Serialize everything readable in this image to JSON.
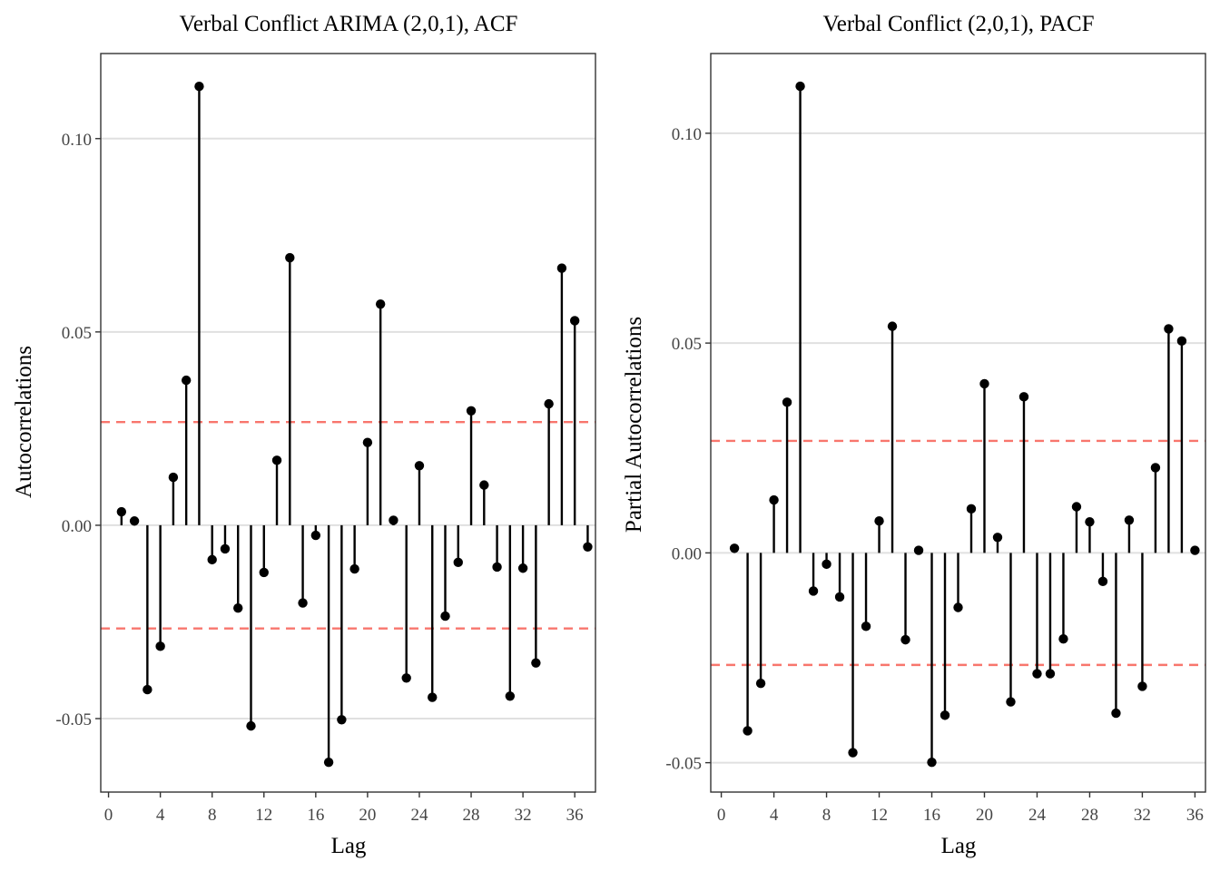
{
  "chart_data": [
    {
      "type": "stem",
      "title": "Verbal Conflict ARIMA (2,0,1), ACF",
      "xlabel": "Lag",
      "ylabel": "Autocorrelations",
      "xlim": [
        0,
        37
      ],
      "ylim": [
        -0.069,
        0.122
      ],
      "xticks": [
        0,
        4,
        8,
        12,
        16,
        20,
        24,
        28,
        32,
        36
      ],
      "xtick_labels": [
        "0",
        "4",
        "8",
        "12",
        "16",
        "20",
        "24",
        "28",
        "32",
        "36"
      ],
      "yticks": [
        -0.05,
        0.0,
        0.05,
        0.1
      ],
      "ytick_labels": [
        "-0.05",
        "0.00",
        "0.05",
        "0.10"
      ],
      "conf_limits": [
        0.0267,
        -0.0267
      ],
      "grid": true,
      "lags": [
        1,
        2,
        3,
        4,
        5,
        6,
        7,
        8,
        9,
        10,
        11,
        12,
        13,
        14,
        15,
        16,
        17,
        18,
        19,
        20,
        21,
        22,
        23,
        24,
        25,
        26,
        27,
        28,
        29,
        30,
        31,
        32,
        33,
        34,
        35,
        36,
        37
      ],
      "values": [
        0.0035,
        0.0011,
        -0.0425,
        -0.0313,
        0.0124,
        0.0375,
        0.1135,
        -0.0089,
        -0.0061,
        -0.0214,
        -0.0519,
        -0.0122,
        0.0168,
        0.0692,
        -0.0201,
        -0.0026,
        -0.0613,
        -0.0503,
        -0.0113,
        0.0214,
        0.0572,
        0.0013,
        -0.0395,
        0.0154,
        -0.0445,
        -0.0235,
        -0.0096,
        0.0296,
        0.0104,
        -0.0108,
        -0.0442,
        -0.0111,
        -0.0356,
        0.0314,
        0.0665,
        0.0529,
        -0.0056
      ]
    },
    {
      "type": "stem",
      "title": "Verbal Conflict (2,0,1), PACF",
      "xlabel": "Lag",
      "ylabel": "Partial Autocorrelations",
      "xlim": [
        0,
        36
      ],
      "ylim": [
        -0.057,
        0.119
      ],
      "xticks": [
        0,
        4,
        8,
        12,
        16,
        20,
        24,
        28,
        32,
        36
      ],
      "xtick_labels": [
        "0",
        "4",
        "8",
        "12",
        "16",
        "20",
        "24",
        "28",
        "32",
        "36"
      ],
      "yticks": [
        -0.05,
        0.0,
        0.05,
        0.1
      ],
      "ytick_labels": [
        "-0.05",
        "0.00",
        "0.05",
        "0.10"
      ],
      "conf_limits": [
        0.0267,
        -0.0267
      ],
      "grid": true,
      "lags": [
        1,
        2,
        3,
        4,
        5,
        6,
        7,
        8,
        9,
        10,
        11,
        12,
        13,
        14,
        15,
        16,
        17,
        18,
        19,
        20,
        21,
        22,
        23,
        24,
        25,
        26,
        27,
        28,
        29,
        30,
        31,
        32,
        33,
        34,
        35,
        36
      ],
      "values": [
        0.0011,
        -0.0424,
        -0.0311,
        0.0126,
        0.0359,
        0.1112,
        -0.0091,
        -0.0027,
        -0.0105,
        -0.0476,
        -0.0175,
        0.0076,
        0.054,
        -0.0207,
        0.0006,
        -0.0499,
        -0.0387,
        -0.013,
        0.0105,
        0.0403,
        0.0037,
        -0.0355,
        0.0372,
        -0.0288,
        -0.0288,
        -0.0205,
        0.011,
        0.0074,
        -0.0068,
        -0.0382,
        0.0078,
        -0.0318,
        0.0203,
        0.0534,
        0.0505,
        0.0006
      ]
    }
  ]
}
